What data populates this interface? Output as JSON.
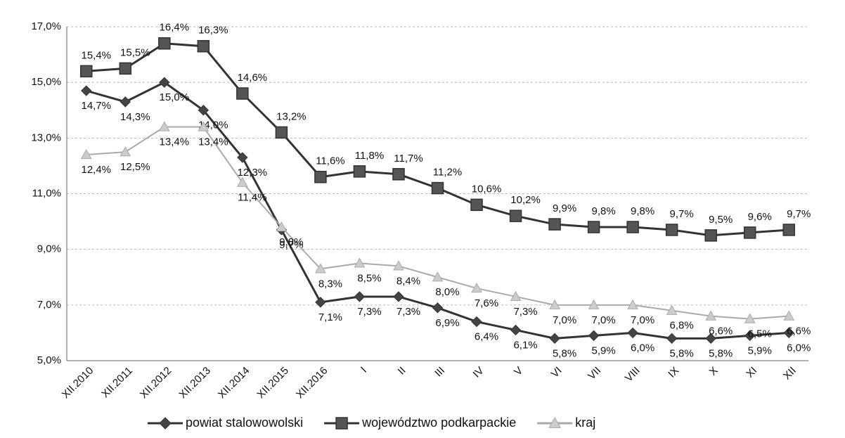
{
  "chart_data": {
    "type": "line",
    "categories": [
      "XII.2010",
      "XII.2011",
      "XII.2012",
      "XII.2013",
      "XII.2014",
      "XII.2015",
      "XII.2016",
      "I",
      "II",
      "III",
      "IV",
      "V",
      "VI",
      "VII",
      "VIII",
      "IX",
      "X",
      "XI",
      "XII"
    ],
    "series": [
      {
        "name": "powiat stalowowolski",
        "color": "#333333",
        "marker": "diamond",
        "values": [
          14.7,
          14.3,
          15.0,
          14.0,
          12.3,
          9.7,
          7.1,
          7.3,
          7.3,
          6.9,
          6.4,
          6.1,
          5.8,
          5.9,
          6.0,
          5.8,
          5.8,
          5.9,
          6.0
        ],
        "value_labels": [
          "14,7%",
          "14,3%",
          "15,0%",
          "14,0%",
          "12,3%",
          "9,7%",
          "7,1%",
          "7,3%",
          "7,3%",
          "6,9%",
          "6,4%",
          "6,1%",
          "5,8%",
          "5,9%",
          "6,0%",
          "5,8%",
          "5,8%",
          "5,9%",
          "6,0%"
        ]
      },
      {
        "name": "województwo podkarpackie",
        "color": "#333333",
        "marker": "square",
        "values": [
          15.4,
          15.5,
          16.4,
          16.3,
          14.6,
          13.2,
          11.6,
          11.8,
          11.7,
          11.2,
          10.6,
          10.2,
          9.9,
          9.8,
          9.8,
          9.7,
          9.5,
          9.6,
          9.7
        ],
        "value_labels": [
          "15,4%",
          "15,5%",
          "16,4%",
          "16,3%",
          "14,6%",
          "13,2%",
          "11,6%",
          "11,8%",
          "11,7%",
          "11,2%",
          "10,6%",
          "10,2%",
          "9,9%",
          "9,8%",
          "9,8%",
          "9,7%",
          "9,5%",
          "9,6%",
          "9,7%"
        ]
      },
      {
        "name": "kraj",
        "color": "#aaaaaa",
        "marker": "triangle",
        "values": [
          12.4,
          12.5,
          13.4,
          13.4,
          11.4,
          9.8,
          8.3,
          8.5,
          8.4,
          8.0,
          7.6,
          7.3,
          7.0,
          7.0,
          7.0,
          6.8,
          6.6,
          6.5,
          6.6
        ],
        "value_labels": [
          "12,4%",
          "12,5%",
          "13,4%",
          "13,4%",
          "11,4%",
          "9,8%",
          "8,3%",
          "8,5%",
          "8,4%",
          "8,0%",
          "7,6%",
          "7,3%",
          "7,0%",
          "7,0%",
          "7,0%",
          "6,8%",
          "6,6%",
          "6,5%",
          "6,6%"
        ]
      }
    ],
    "ylim": [
      5,
      17
    ],
    "yticks": [
      {
        "value": 5,
        "label": "5,0%"
      },
      {
        "value": 7,
        "label": "7,0%"
      },
      {
        "value": 9,
        "label": "9,0%"
      },
      {
        "value": 11,
        "label": "11,0%"
      },
      {
        "value": 13,
        "label": "13,0%"
      },
      {
        "value": 15,
        "label": "15,0%"
      },
      {
        "value": 17,
        "label": "17,0%"
      }
    ],
    "grid": true,
    "legend": "bottom"
  }
}
